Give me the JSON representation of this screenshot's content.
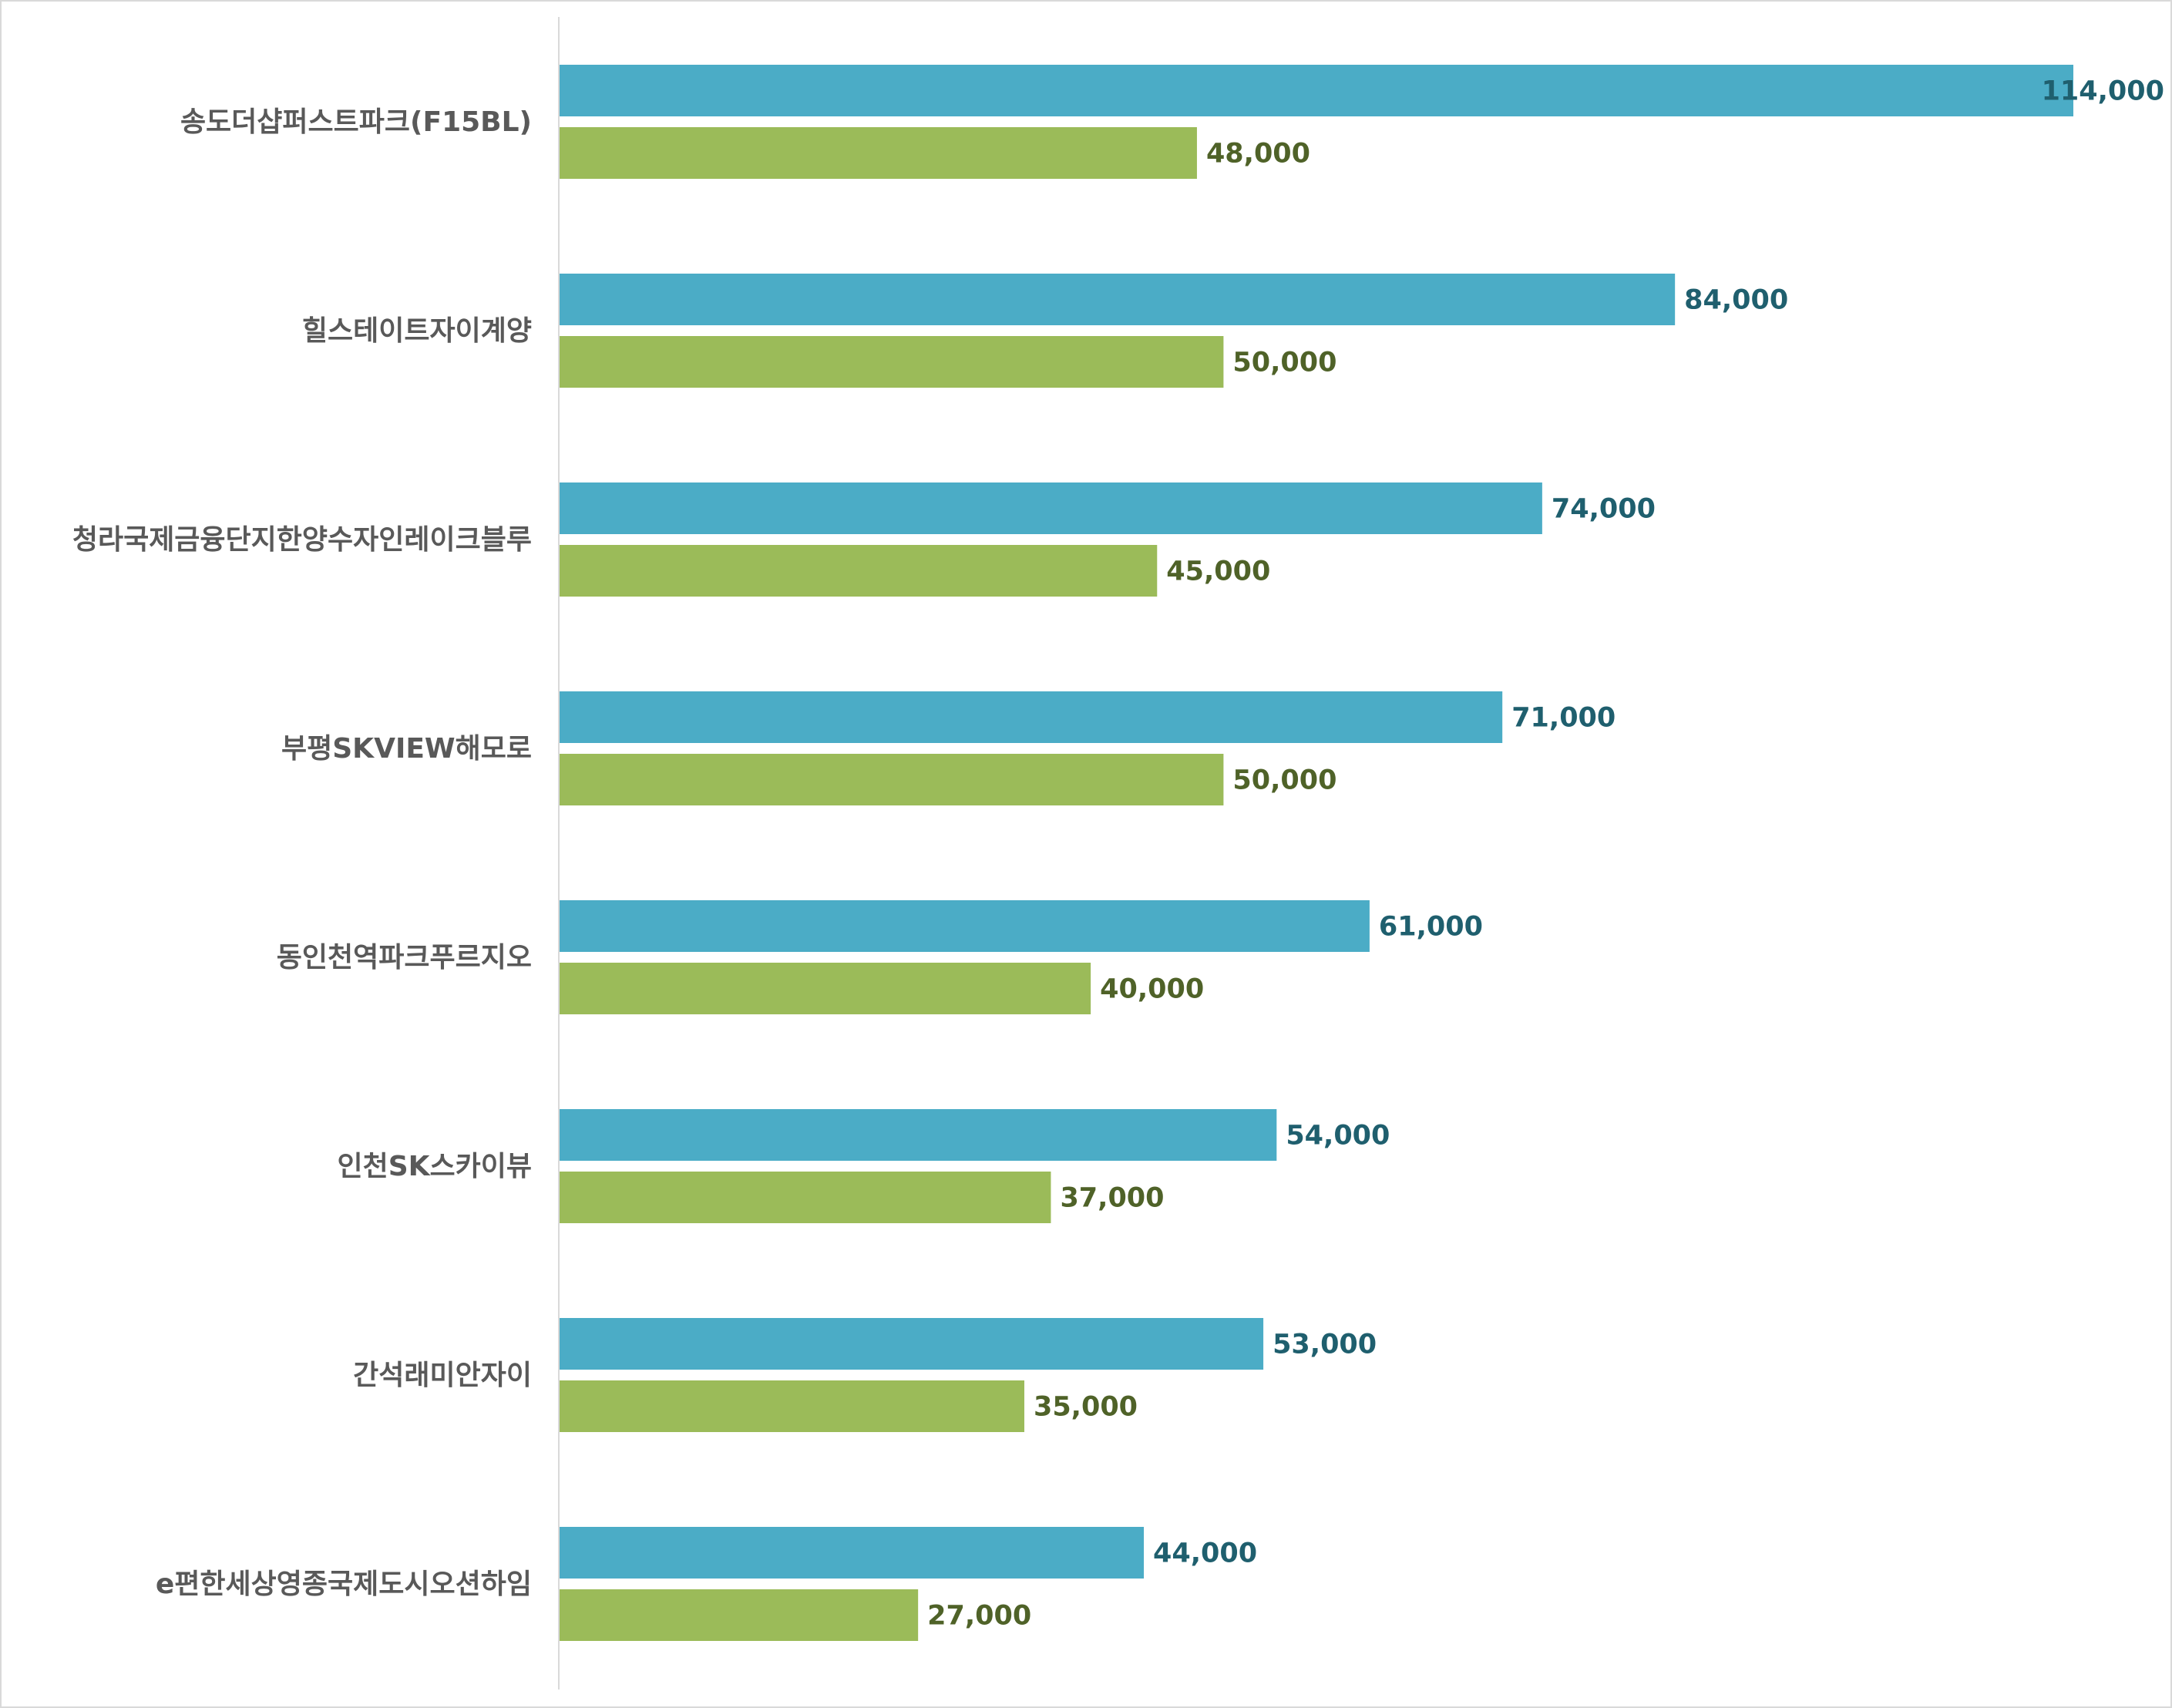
{
  "chart_data": {
    "type": "bar",
    "orientation": "horizontal",
    "title": "",
    "xlabel": "",
    "ylabel": "",
    "xlim": [
      0,
      114000
    ],
    "grid": false,
    "legend": "none",
    "categories": [
      "송도더샵퍼스트파크(F15BL)",
      "힐스테이트자이계양",
      "청라국제금융단지한양수자인레이크블루",
      "부평SKVIEW해모로",
      "동인천역파크푸르지오",
      "인천SK스카이뷰",
      "간석래미안자이",
      "e편한세상영종국제도시오션하임"
    ],
    "series": [
      {
        "color": "#4bacc6",
        "label_color": "#1f5f6e",
        "values": [
          114000,
          84000,
          74000,
          71000,
          61000,
          54000,
          53000,
          44000
        ],
        "labels": [
          "114,000",
          "84,000",
          "74,000",
          "71,000",
          "61,000",
          "54,000",
          "53,000",
          "44,000"
        ]
      },
      {
        "color": "#9bbb59",
        "label_color": "#4f6228",
        "values": [
          48000,
          50000,
          45000,
          50000,
          40000,
          37000,
          35000,
          27000
        ],
        "labels": [
          "48,000",
          "50,000",
          "45,000",
          "50,000",
          "40,000",
          "37,000",
          "35,000",
          "27,000"
        ]
      }
    ]
  }
}
